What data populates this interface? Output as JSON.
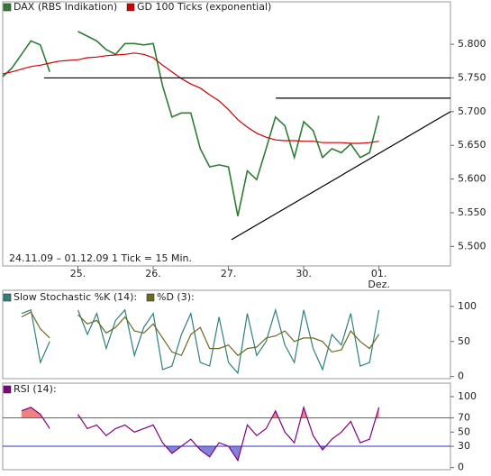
{
  "chart_data": [
    {
      "type": "line",
      "series": [
        {
          "name": "DAX (RBS Indikation)",
          "color": "#2e7d32",
          "values": [
            5752,
            5765,
            5785,
            5805,
            5799,
            5759,
            null,
            null,
            5819,
            5812,
            5805,
            5792,
            5785,
            5801,
            5801,
            5799,
            5801,
            5738,
            5692,
            5698,
            5698,
            5645,
            5618,
            5621,
            5618,
            5545,
            5612,
            5599,
            5645,
            5692,
            5679,
            5632,
            5685,
            5672,
            5632,
            5645,
            5639,
            5652,
            5632,
            5639,
            5694
          ]
        },
        {
          "name": "GD 100 Ticks (exponential)",
          "color": "#d00000",
          "values": [
            5756,
            5759,
            5763,
            5767,
            5769,
            5772,
            5775,
            5776,
            5777,
            5780,
            5781,
            5783,
            5784,
            5785,
            5787,
            5785,
            5780,
            5769,
            5759,
            5749,
            5741,
            5735,
            5725,
            5716,
            5703,
            5688,
            5677,
            5668,
            5662,
            5658,
            5657,
            5657,
            5656,
            5656,
            5654,
            5654,
            5654,
            5653,
            5653,
            5654,
            5656
          ]
        }
      ],
      "x": [
        -1,
        -0.875,
        -0.75,
        -0.625,
        -0.5,
        -0.375,
        -0.25,
        -0.125,
        0,
        0.125,
        0.25,
        0.375,
        0.5,
        0.625,
        0.75,
        0.875,
        1,
        1.125,
        1.25,
        1.375,
        1.5,
        1.625,
        1.75,
        1.875,
        2,
        2.125,
        2.25,
        2.375,
        2.5,
        2.625,
        2.75,
        2.875,
        3,
        3.125,
        3.25,
        3.375,
        3.5,
        3.625,
        3.75,
        3.875,
        4
      ],
      "xlim": [
        -1,
        4.95
      ],
      "xticks": [
        {
          "value": 0,
          "label": "25."
        },
        {
          "value": 1,
          "label": "26."
        },
        {
          "value": 2,
          "label": "27."
        },
        {
          "value": 3,
          "label": "30."
        },
        {
          "value": 4,
          "label": "01."
        }
      ],
      "x_sublabel": "Dez.",
      "annotation": "24.11.09 – 01.12.09   1 Tick = 15 Min.",
      "ylim": [
        5471,
        5863
      ],
      "yticks": [
        {
          "value": 5800,
          "label": "5.800"
        },
        {
          "value": 5750,
          "label": "5.750"
        },
        {
          "value": 5700,
          "label": "5.700"
        },
        {
          "value": 5650,
          "label": "5.650"
        },
        {
          "value": 5600,
          "label": "5.600"
        },
        {
          "value": 5550,
          "label": "5.550"
        },
        {
          "value": 5500,
          "label": "5.500"
        }
      ],
      "levels": [
        {
          "x": [
            -0.45,
            4.95
          ],
          "y": [
            5750,
            5750
          ]
        },
        {
          "x": [
            2.63,
            4.95
          ],
          "y": [
            5720,
            5720
          ]
        },
        {
          "x": [
            2.04,
            4.95
          ],
          "y": [
            5510,
            5700
          ]
        }
      ]
    },
    {
      "type": "line",
      "series": [
        {
          "name": "Slow Stochastic %K (14):",
          "color": "#2f7f7f",
          "values": [
            null,
            null,
            90,
            95,
            20,
            50,
            null,
            null,
            95,
            60,
            90,
            40,
            80,
            95,
            30,
            70,
            90,
            10,
            15,
            60,
            90,
            20,
            15,
            85,
            20,
            5,
            90,
            30,
            50,
            95,
            45,
            20,
            95,
            40,
            10,
            60,
            45,
            90,
            15,
            20,
            95
          ]
        },
        {
          "name": "%D (3):",
          "color": "#6b6b20",
          "values": [
            null,
            null,
            85,
            92,
            68,
            55,
            null,
            null,
            88,
            75,
            80,
            62,
            70,
            85,
            65,
            62,
            75,
            55,
            35,
            30,
            60,
            70,
            40,
            40,
            45,
            30,
            40,
            42,
            55,
            58,
            65,
            50,
            55,
            55,
            50,
            35,
            38,
            65,
            50,
            40,
            60
          ]
        }
      ],
      "ylim": [
        -3,
        123
      ],
      "yticks": [
        100,
        50,
        0
      ]
    },
    {
      "type": "line",
      "series": [
        {
          "name": "RSI (14):",
          "color": "#800080",
          "values": [
            null,
            null,
            80,
            85,
            75,
            55,
            null,
            null,
            75,
            55,
            60,
            45,
            55,
            60,
            50,
            55,
            60,
            35,
            20,
            30,
            40,
            25,
            15,
            35,
            30,
            10,
            60,
            45,
            55,
            80,
            50,
            35,
            85,
            45,
            25,
            40,
            50,
            65,
            35,
            40,
            85
          ]
        }
      ],
      "ylim": [
        -3,
        119
      ],
      "yticks": [
        100,
        70,
        50,
        30,
        0
      ],
      "reference_lines": [
        {
          "value": 70,
          "color": "#e03030",
          "fill": "above"
        },
        {
          "value": 30,
          "color": "#3030c0",
          "fill": "below"
        }
      ]
    }
  ]
}
